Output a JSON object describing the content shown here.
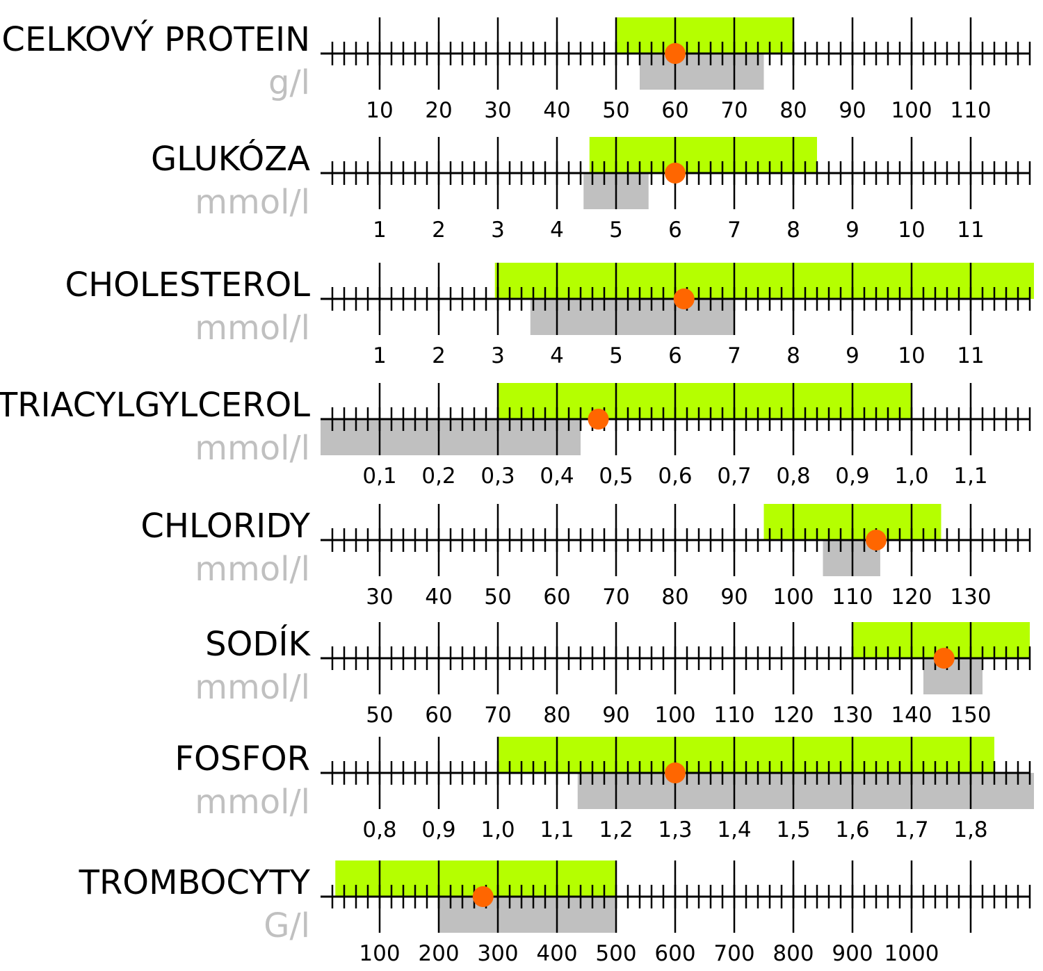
{
  "colors": {
    "recommended_range": "#b5ff00",
    "reference_range": "#c0c0c0",
    "value_marker": "#ff6600",
    "axis": "#000000",
    "unit_text": "#c0c0c0"
  },
  "chart_data": [
    {
      "type": "range",
      "title": "CELKOVÝ PROTEIN",
      "unit": "g/l",
      "axis_min": 1,
      "axis_max": 116,
      "major_step": 10,
      "minor_step": 2,
      "tick_labels": [
        "10",
        "20",
        "30",
        "40",
        "50",
        "60",
        "70",
        "80",
        "90",
        "100",
        "110"
      ],
      "tick_values": [
        10,
        20,
        30,
        40,
        50,
        60,
        70,
        80,
        90,
        100,
        110
      ],
      "green_range": [
        50,
        80
      ],
      "gray_range": [
        54,
        75
      ],
      "value": 60
    },
    {
      "type": "range",
      "title": "GLUKÓZA",
      "unit": "mmol/l",
      "axis_min": 0.1,
      "axis_max": 11.6,
      "major_step": 1,
      "minor_step": 0.2,
      "tick_labels": [
        "1",
        "2",
        "3",
        "4",
        "5",
        "6",
        "7",
        "8",
        "9",
        "10",
        "11"
      ],
      "tick_values": [
        1,
        2,
        3,
        4,
        5,
        6,
        7,
        8,
        9,
        10,
        11
      ],
      "green_range": [
        4.55,
        8.4
      ],
      "gray_range": [
        4.45,
        5.55
      ],
      "value": 6.0
    },
    {
      "type": "range",
      "title": "CHOLESTEROL",
      "unit": "mmol/l",
      "axis_min": 0.1,
      "axis_max": 11.6,
      "major_step": 1,
      "minor_step": 0.2,
      "tick_labels": [
        "1",
        "2",
        "3",
        "4",
        "5",
        "6",
        "7",
        "8",
        "9",
        "10",
        "11"
      ],
      "tick_values": [
        1,
        2,
        3,
        4,
        5,
        6,
        7,
        8,
        9,
        10,
        11
      ],
      "green_range": [
        2.95,
        12.1
      ],
      "gray_range": [
        3.55,
        7.0
      ],
      "value": 6.15
    },
    {
      "type": "range",
      "title": "TRIACYLGYLCEROL",
      "unit": "mmol/l",
      "axis_min": 0.01,
      "axis_max": 1.16,
      "major_step": 0.1,
      "minor_step": 0.02,
      "tick_labels": [
        "0,1",
        "0,2",
        "0,3",
        "0,4",
        "0,5",
        "0,6",
        "0,7",
        "0,8",
        "0,9",
        "1,0",
        "1,1"
      ],
      "tick_values": [
        0.1,
        0.2,
        0.3,
        0.4,
        0.5,
        0.6,
        0.7,
        0.8,
        0.9,
        1.0,
        1.1
      ],
      "green_range": [
        0.3,
        1.0
      ],
      "gray_range": [
        0.0,
        0.44
      ],
      "value": 0.47
    },
    {
      "type": "range",
      "title": "CHLORIDY",
      "unit": "mmol/l",
      "axis_min": 21,
      "axis_max": 136,
      "major_step": 10,
      "minor_step": 2,
      "tick_labels": [
        "30",
        "40",
        "50",
        "60",
        "70",
        "80",
        "90",
        "100",
        "110",
        "120",
        "130"
      ],
      "tick_values": [
        30,
        40,
        50,
        60,
        70,
        80,
        90,
        100,
        110,
        120,
        130
      ],
      "green_range": [
        95,
        125
      ],
      "gray_range": [
        105,
        114.7
      ],
      "value": 114
    },
    {
      "type": "range",
      "title": "SODÍK",
      "unit": "mmol/l",
      "axis_min": 41,
      "axis_max": 156,
      "major_step": 10,
      "minor_step": 2,
      "tick_labels": [
        "50",
        "60",
        "70",
        "80",
        "90",
        "100",
        "110",
        "120",
        "130",
        "140",
        "150"
      ],
      "tick_values": [
        50,
        60,
        70,
        80,
        90,
        100,
        110,
        120,
        130,
        140,
        150
      ],
      "green_range": [
        130,
        160
      ],
      "gray_range": [
        142,
        152
      ],
      "value": 145.5
    },
    {
      "type": "range",
      "title": "FOSFOR",
      "unit": "mmol/l",
      "axis_min": 0.71,
      "axis_max": 1.86,
      "major_step": 0.1,
      "minor_step": 0.02,
      "tick_labels": [
        "0,8",
        "0,9",
        "1,0",
        "1,1",
        "1,2",
        "1,3",
        "1,4",
        "1,5",
        "1,6",
        "1,7",
        "1,8"
      ],
      "tick_values": [
        0.8,
        0.9,
        1.0,
        1.1,
        1.2,
        1.3,
        1.4,
        1.5,
        1.6,
        1.7,
        1.8
      ],
      "green_range": [
        1.0,
        1.84
      ],
      "gray_range": [
        1.135,
        2.0
      ],
      "value": 1.3
    },
    {
      "type": "range",
      "title": "TROMBOCYTY",
      "unit": "G/l",
      "axis_min": 10,
      "axis_max": 1160,
      "major_step": 100,
      "minor_step": 20,
      "tick_labels": [
        "100",
        "200",
        "300",
        "400",
        "500",
        "600",
        "700",
        "800",
        "900",
        "1000"
      ],
      "tick_values": [
        100,
        200,
        300,
        400,
        500,
        600,
        700,
        800,
        900,
        1000
      ],
      "green_range": [
        25,
        500
      ],
      "gray_range": [
        200,
        500
      ],
      "value": 275
    }
  ]
}
